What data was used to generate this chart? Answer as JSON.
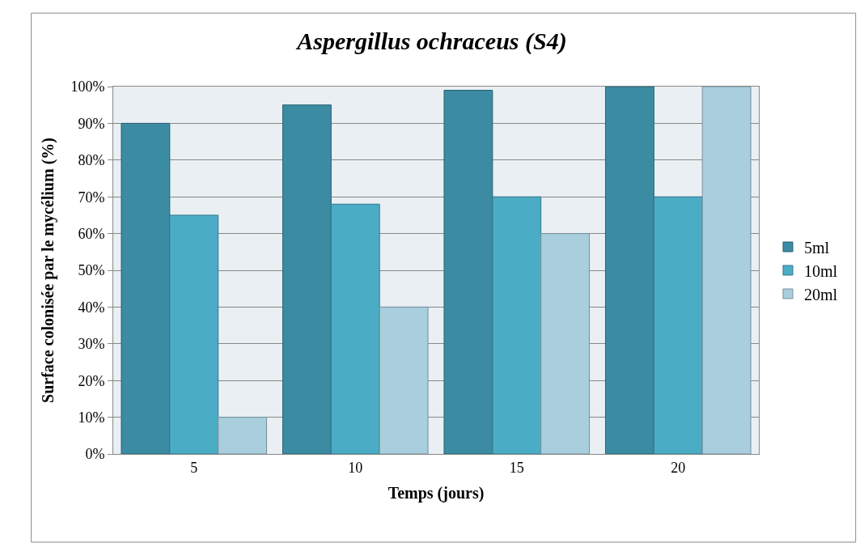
{
  "chart_data": {
    "type": "bar",
    "title": "Aspergillus ochraceus (S4)",
    "xlabel": "Temps (jours)",
    "ylabel": "Surface colonisée par le mycélium (%)",
    "categories": [
      "5",
      "10",
      "15",
      "20"
    ],
    "series": [
      {
        "name": "5ml",
        "color": "#3b8ba3",
        "values": [
          90,
          95,
          99,
          100
        ]
      },
      {
        "name": "10ml",
        "color": "#4bacc6",
        "values": [
          65,
          68,
          70,
          70
        ]
      },
      {
        "name": "20ml",
        "color": "#a9cedd",
        "values": [
          10,
          40,
          60,
          100
        ]
      }
    ],
    "ylim": [
      0,
      100
    ],
    "yticks": [
      {
        "value": 0,
        "label": "0%"
      },
      {
        "value": 10,
        "label": "10%"
      },
      {
        "value": 20,
        "label": "20%"
      },
      {
        "value": 30,
        "label": "30%"
      },
      {
        "value": 40,
        "label": "40%"
      },
      {
        "value": 50,
        "label": "50%"
      },
      {
        "value": 60,
        "label": "60%"
      },
      {
        "value": 70,
        "label": "70%"
      },
      {
        "value": 80,
        "label": "80%"
      },
      {
        "value": 90,
        "label": "90%"
      },
      {
        "value": 100,
        "label": "100%"
      }
    ],
    "grid": "y",
    "legend": "right"
  }
}
